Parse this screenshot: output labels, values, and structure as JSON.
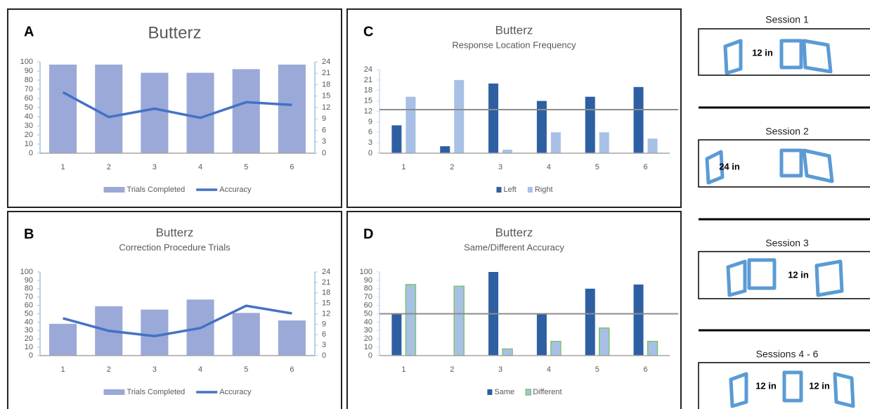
{
  "chart_data": [
    {
      "type": "combo",
      "panel_label": "A",
      "title": "Butterz",
      "categories": [
        "1",
        "2",
        "3",
        "4",
        "5",
        "6"
      ],
      "series": [
        {
          "name": "Trials Completed",
          "type": "bar",
          "color": "#9aa9d8",
          "values": [
            97,
            97,
            88,
            88,
            92,
            97
          ]
        },
        {
          "name": "Accuracy",
          "type": "line",
          "axis": "y2",
          "color": "#4472c4",
          "values": [
            16.0,
            9.5,
            11.7,
            9.3,
            13.4,
            12.7
          ]
        }
      ],
      "ylim": [
        0,
        100
      ],
      "yticks": [
        0,
        10,
        20,
        30,
        40,
        50,
        60,
        70,
        80,
        90,
        100
      ],
      "y2lim": [
        0,
        24
      ],
      "y2ticks": [
        0,
        3,
        6,
        9,
        12,
        15,
        18,
        21,
        24
      ]
    },
    {
      "type": "combo",
      "panel_label": "B",
      "title": "Butterz",
      "subtitle": "Correction Procedure Trials",
      "categories": [
        "1",
        "2",
        "3",
        "4",
        "5",
        "6"
      ],
      "series": [
        {
          "name": "Trials Completed",
          "type": "bar",
          "color": "#9aa9d8",
          "values": [
            38,
            59,
            55,
            67,
            51,
            42
          ]
        },
        {
          "name": "Accuracy",
          "type": "line",
          "axis": "y2",
          "color": "#4472c4",
          "values": [
            10.7,
            7.1,
            5.6,
            7.9,
            14.3,
            12.1
          ]
        }
      ],
      "ylim": [
        0,
        100
      ],
      "yticks": [
        0,
        10,
        20,
        30,
        40,
        50,
        60,
        70,
        80,
        90,
        100
      ],
      "y2lim": [
        0,
        24
      ],
      "y2ticks": [
        0,
        3,
        6,
        9,
        12,
        15,
        18,
        21,
        24
      ]
    },
    {
      "type": "bar",
      "panel_label": "C",
      "title": "Butterz",
      "subtitle": "Response Location Frequency",
      "categories": [
        "1",
        "2",
        "3",
        "4",
        "5",
        "6"
      ],
      "series": [
        {
          "name": "Left",
          "color": "#2e5fa3",
          "values": [
            8,
            2,
            20,
            15,
            16.2,
            19
          ]
        },
        {
          "name": "Right",
          "color": "#a8c0e6",
          "values": [
            16.2,
            21,
            1,
            6,
            6,
            4.2
          ]
        }
      ],
      "ylim": [
        0,
        24
      ],
      "yticks": [
        0,
        3,
        6,
        9,
        12,
        15,
        18,
        21,
        24
      ],
      "reference_line": 12.5
    },
    {
      "type": "bar",
      "panel_label": "D",
      "title": "Butterz",
      "subtitle": "Same/Different Accuracy",
      "categories": [
        "1",
        "2",
        "3",
        "4",
        "5",
        "6"
      ],
      "series": [
        {
          "name": "Same",
          "color": "#2e5fa3",
          "values": [
            50,
            0,
            100,
            50,
            80,
            85
          ]
        },
        {
          "name": "Different",
          "color": "#a8c0e6",
          "border_color": "#7cc46b",
          "values": [
            85,
            83,
            8,
            17,
            33,
            17
          ]
        }
      ],
      "ylim": [
        0,
        100
      ],
      "yticks": [
        0,
        10,
        20,
        30,
        40,
        50,
        60,
        70,
        80,
        90,
        100
      ],
      "reference_line": 50
    }
  ],
  "sessions": [
    {
      "title": "Session 1",
      "distances": [
        "12 in"
      ]
    },
    {
      "title": "Session 2",
      "distances": [
        "24 in"
      ]
    },
    {
      "title": "Session 3",
      "distances": [
        "12 in"
      ]
    },
    {
      "title": "Sessions 4 - 6",
      "distances": [
        "12 in",
        "12 in"
      ]
    }
  ]
}
